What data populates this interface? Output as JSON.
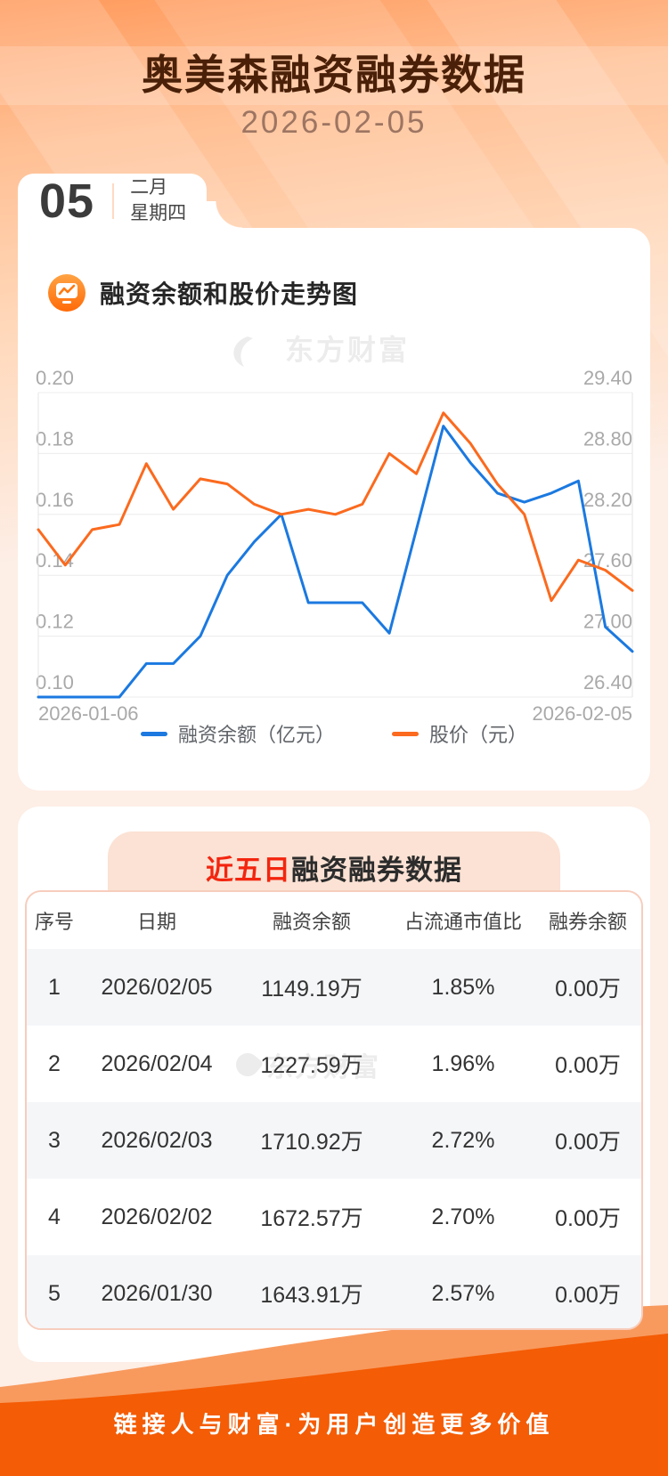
{
  "header": {
    "title": "奥美森融资融券数据",
    "date": "2026-02-05"
  },
  "date_card": {
    "day": "05",
    "month": "二月",
    "weekday": "星期四"
  },
  "chart_section": {
    "title": "融资余额和股价走势图",
    "icon": "trend-monitor-icon"
  },
  "watermark": {
    "text": "东方财富"
  },
  "chart_data": {
    "type": "line",
    "x_labels": [
      "2026-01-06",
      "2026-02-05"
    ],
    "points_count": 23,
    "grid": true,
    "legend_position": "bottom",
    "left_axis": {
      "ticks": [
        "0.20",
        "0.18",
        "0.16",
        "0.14",
        "0.12",
        "0.10"
      ],
      "range": [
        0.1,
        0.2
      ]
    },
    "right_axis": {
      "ticks": [
        "29.40",
        "28.80",
        "28.20",
        "27.60",
        "27.00",
        "26.40"
      ],
      "range": [
        26.4,
        29.4
      ]
    },
    "series": [
      {
        "name": "融资余额（亿元）",
        "axis": "left",
        "color": "#1b79e0",
        "values": [
          0.1,
          0.1,
          0.1,
          0.1,
          0.111,
          0.111,
          0.12,
          0.14,
          0.151,
          0.16,
          0.131,
          0.131,
          0.131,
          0.121,
          0.155,
          0.189,
          0.177,
          0.167,
          0.164,
          0.167,
          0.171,
          0.123,
          0.115
        ]
      },
      {
        "name": "股价（元）",
        "axis": "right",
        "color": "#fb6a1e",
        "values": [
          28.05,
          27.7,
          28.05,
          28.1,
          28.7,
          28.25,
          28.55,
          28.5,
          28.3,
          28.2,
          28.25,
          28.2,
          28.3,
          28.8,
          28.6,
          29.2,
          28.9,
          28.5,
          28.2,
          27.35,
          27.75,
          27.65,
          27.45
        ]
      }
    ]
  },
  "table_section": {
    "banner_highlight": "近五日",
    "banner_rest": "融资融券数据",
    "columns": [
      "序号",
      "日期",
      "融资余额",
      "占流通市值比",
      "融券余额"
    ],
    "rows": [
      {
        "index": "1",
        "date": "2026/02/05",
        "balance": "1149.19万",
        "ratio": "1.85%",
        "short_balance": "0.00万"
      },
      {
        "index": "2",
        "date": "2026/02/04",
        "balance": "1227.59万",
        "ratio": "1.96%",
        "short_balance": "0.00万"
      },
      {
        "index": "3",
        "date": "2026/02/03",
        "balance": "1710.92万",
        "ratio": "2.72%",
        "short_balance": "0.00万"
      },
      {
        "index": "4",
        "date": "2026/02/02",
        "balance": "1672.57万",
        "ratio": "2.70%",
        "short_balance": "0.00万"
      },
      {
        "index": "5",
        "date": "2026/01/30",
        "balance": "1643.91万",
        "ratio": "2.57%",
        "short_balance": "0.00万"
      }
    ]
  },
  "footer": {
    "slogan": "链接人与财富·为用户创造更多价值"
  },
  "colors": {
    "accent_red": "#f3250f",
    "footer_orange": "#f45c05",
    "footer_wave_light": "#f89a5e",
    "line_blue": "#1b79e0",
    "line_orange": "#fb6a1e"
  }
}
